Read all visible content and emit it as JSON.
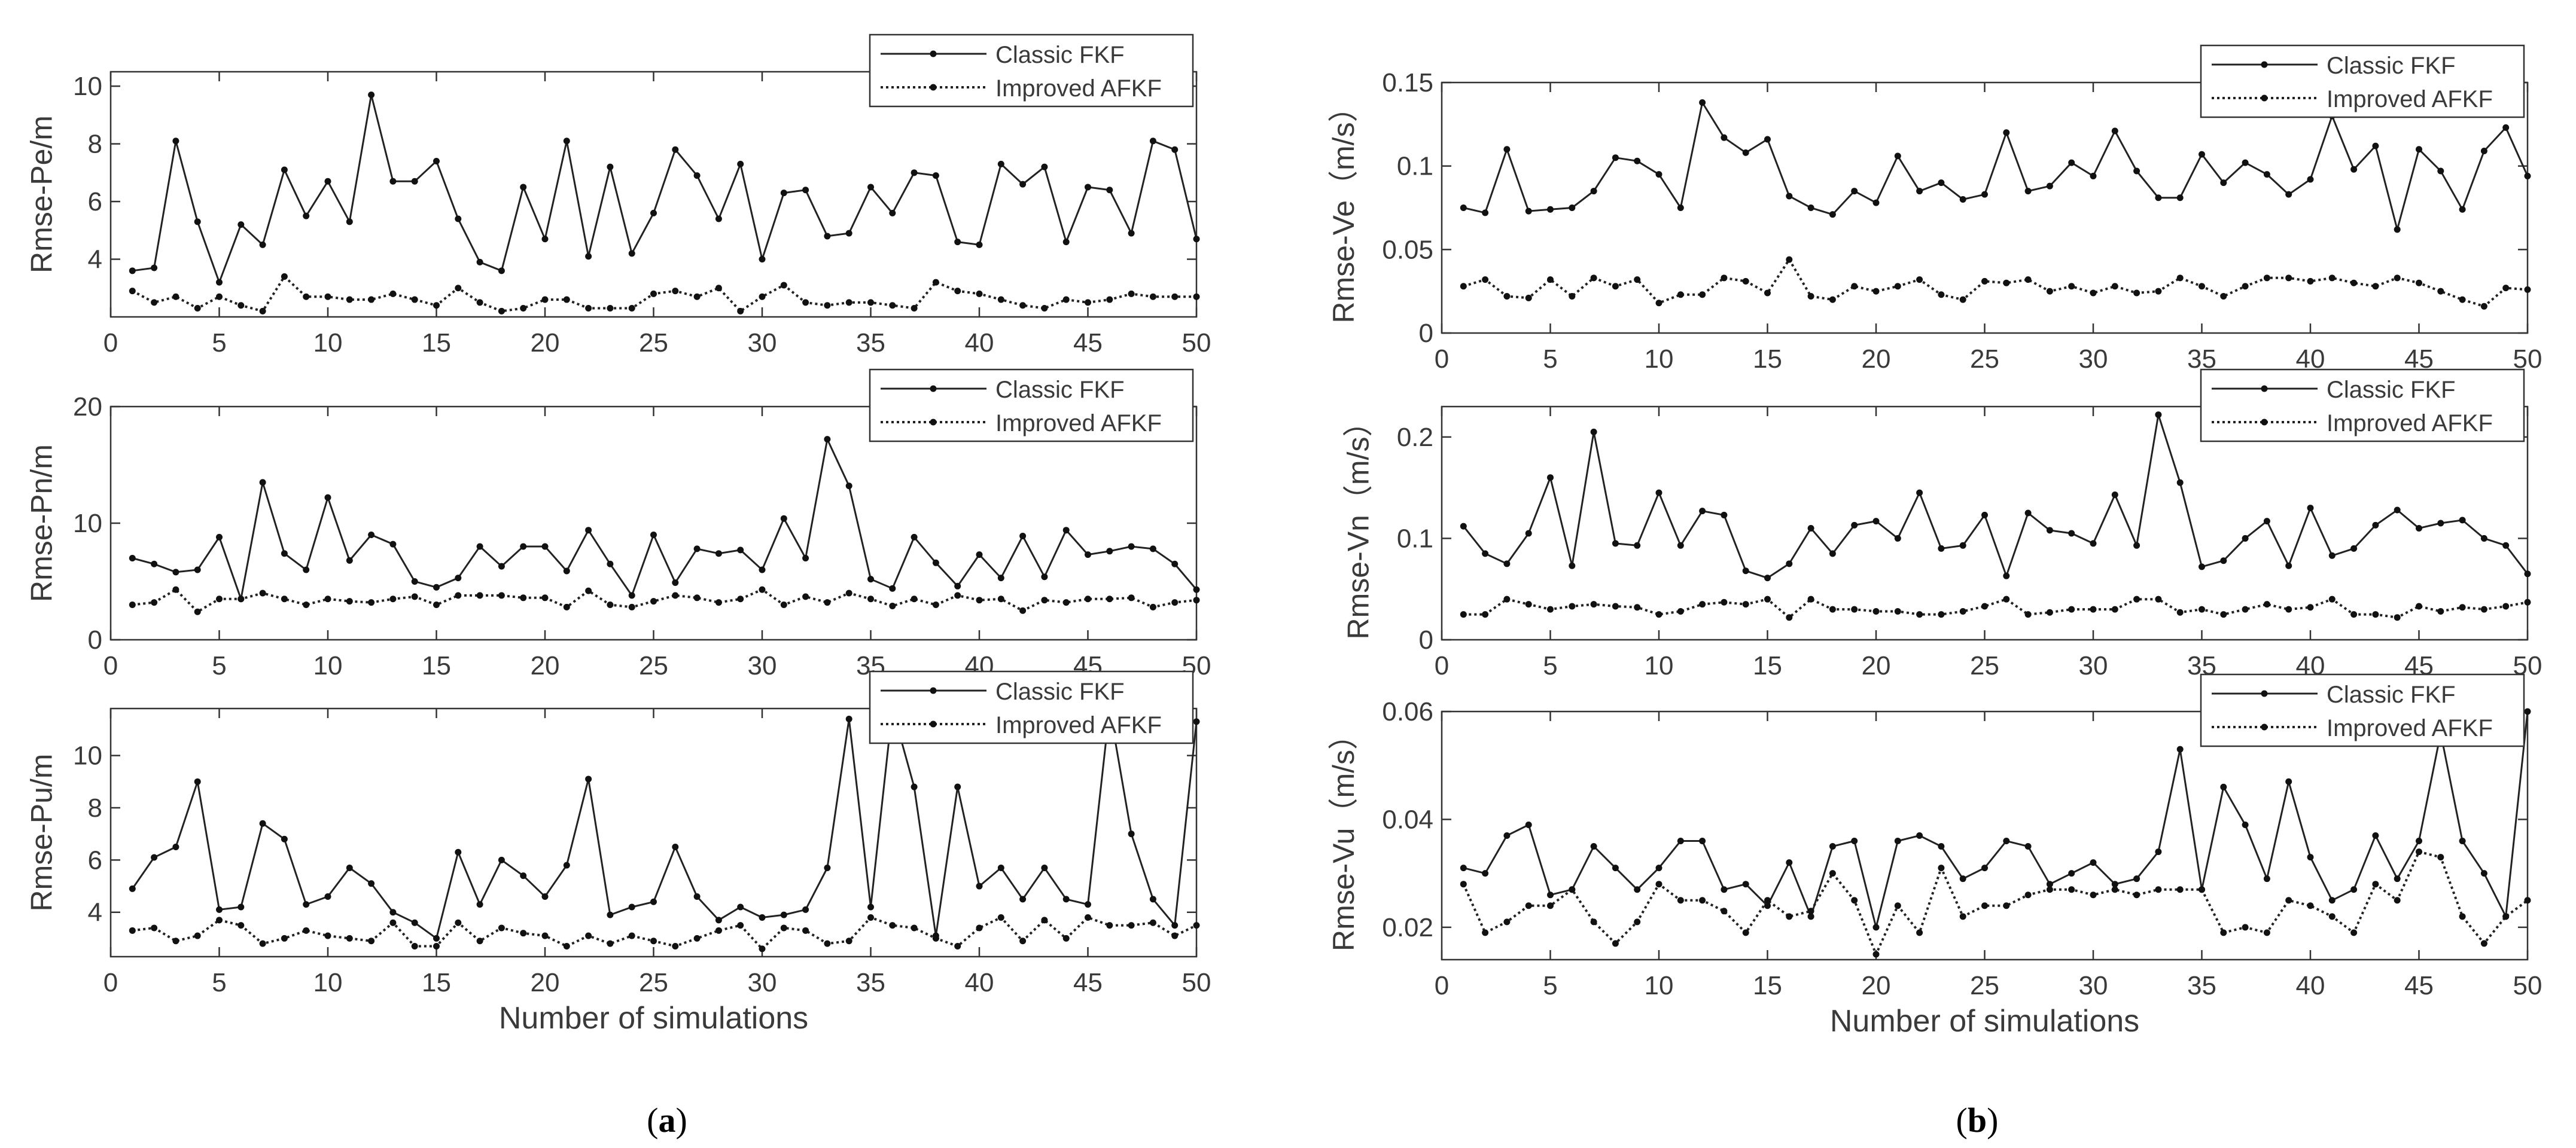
{
  "figure": {
    "caption_left_open": "(",
    "caption_left_letter": "a",
    "caption_left_close": ")",
    "caption_right_open": "(",
    "caption_right_letter": "b",
    "caption_right_close": ")"
  },
  "chart_data": [
    {
      "id": "pe",
      "type": "line",
      "ylabel": "Rmse-Pe/m",
      "xlabel": "",
      "xlim": [
        0,
        50
      ],
      "ylim": [
        2,
        10.5
      ],
      "yticks": [
        4,
        6,
        8,
        10
      ],
      "xticks": [
        0,
        5,
        10,
        15,
        20,
        25,
        30,
        35,
        40,
        45,
        50
      ],
      "x": [
        1,
        2,
        3,
        4,
        5,
        6,
        7,
        8,
        9,
        10,
        11,
        12,
        13,
        14,
        15,
        16,
        17,
        18,
        19,
        20,
        21,
        22,
        23,
        24,
        25,
        26,
        27,
        28,
        29,
        30,
        31,
        32,
        33,
        34,
        35,
        36,
        37,
        38,
        39,
        40,
        41,
        42,
        43,
        44,
        45,
        46,
        47,
        48,
        49,
        50
      ],
      "series": [
        {
          "name": "Classic FKF",
          "style": "solid",
          "values": [
            3.6,
            3.7,
            8.1,
            5.3,
            3.2,
            5.2,
            4.5,
            7.1,
            5.5,
            6.7,
            5.3,
            9.7,
            6.7,
            6.7,
            7.4,
            5.4,
            3.9,
            3.6,
            6.5,
            4.7,
            8.1,
            4.1,
            7.2,
            4.2,
            5.6,
            7.8,
            6.9,
            5.4,
            7.3,
            4.0,
            6.3,
            6.4,
            4.8,
            4.9,
            6.5,
            5.6,
            7.0,
            6.9,
            4.6,
            4.5,
            7.3,
            6.6,
            7.2,
            4.6,
            6.5,
            6.4,
            4.9,
            8.1,
            7.8,
            4.7
          ]
        },
        {
          "name": "Improved AFKF",
          "style": "dotted",
          "values": [
            2.9,
            2.5,
            2.7,
            2.3,
            2.7,
            2.4,
            2.2,
            3.4,
            2.7,
            2.7,
            2.6,
            2.6,
            2.8,
            2.6,
            2.4,
            3.0,
            2.5,
            2.2,
            2.3,
            2.6,
            2.6,
            2.3,
            2.3,
            2.3,
            2.8,
            2.9,
            2.7,
            3.0,
            2.2,
            2.7,
            3.1,
            2.5,
            2.4,
            2.5,
            2.5,
            2.4,
            2.3,
            3.2,
            2.9,
            2.8,
            2.6,
            2.4,
            2.3,
            2.6,
            2.5,
            2.6,
            2.8,
            2.7,
            2.7,
            2.7
          ]
        }
      ]
    },
    {
      "id": "pn",
      "type": "line",
      "ylabel": "Rmse-Pn/m",
      "xlabel": "",
      "xlim": [
        0,
        50
      ],
      "ylim": [
        0,
        20
      ],
      "yticks": [
        0,
        10,
        20
      ],
      "xticks": [
        0,
        5,
        10,
        15,
        20,
        25,
        30,
        35,
        40,
        45,
        50
      ],
      "x": [
        1,
        2,
        3,
        4,
        5,
        6,
        7,
        8,
        9,
        10,
        11,
        12,
        13,
        14,
        15,
        16,
        17,
        18,
        19,
        20,
        21,
        22,
        23,
        24,
        25,
        26,
        27,
        28,
        29,
        30,
        31,
        32,
        33,
        34,
        35,
        36,
        37,
        38,
        39,
        40,
        41,
        42,
        43,
        44,
        45,
        46,
        47,
        48,
        49,
        50
      ],
      "series": [
        {
          "name": "Classic FKF",
          "style": "solid",
          "values": [
            7.0,
            6.5,
            5.8,
            6.0,
            8.8,
            3.5,
            13.5,
            7.4,
            6.0,
            12.2,
            6.8,
            9.0,
            8.2,
            5.0,
            4.5,
            5.3,
            8.0,
            6.3,
            8.0,
            8.0,
            5.9,
            9.4,
            6.5,
            3.8,
            9.0,
            4.9,
            7.8,
            7.4,
            7.7,
            6.0,
            10.4,
            7.0,
            17.2,
            13.2,
            5.2,
            4.4,
            8.8,
            6.6,
            4.6,
            7.3,
            5.3,
            8.9,
            5.4,
            9.4,
            7.3,
            7.6,
            8.0,
            7.8,
            6.5,
            4.3
          ]
        },
        {
          "name": "Improved AFKF",
          "style": "dotted",
          "values": [
            3.0,
            3.2,
            4.3,
            2.4,
            3.5,
            3.5,
            4.0,
            3.5,
            3.0,
            3.5,
            3.3,
            3.2,
            3.5,
            3.7,
            3.0,
            3.8,
            3.8,
            3.8,
            3.6,
            3.6,
            2.8,
            4.2,
            3.0,
            2.8,
            3.3,
            3.8,
            3.6,
            3.2,
            3.5,
            4.3,
            3.0,
            3.7,
            3.2,
            4.0,
            3.5,
            2.9,
            3.5,
            3.0,
            3.8,
            3.4,
            3.5,
            2.5,
            3.4,
            3.2,
            3.5,
            3.5,
            3.6,
            2.8,
            3.2,
            3.4
          ]
        }
      ]
    },
    {
      "id": "pu",
      "type": "line",
      "ylabel": "Rmse-Pu/m",
      "xlabel": "Number of simulations",
      "xlim": [
        0,
        50
      ],
      "ylim": [
        2.3,
        11.8
      ],
      "yticks": [
        4,
        6,
        8,
        10
      ],
      "xticks": [
        0,
        5,
        10,
        15,
        20,
        25,
        30,
        35,
        40,
        45,
        50
      ],
      "x": [
        1,
        2,
        3,
        4,
        5,
        6,
        7,
        8,
        9,
        10,
        11,
        12,
        13,
        14,
        15,
        16,
        17,
        18,
        19,
        20,
        21,
        22,
        23,
        24,
        25,
        26,
        27,
        28,
        29,
        30,
        31,
        32,
        33,
        34,
        35,
        36,
        37,
        38,
        39,
        40,
        41,
        42,
        43,
        44,
        45,
        46,
        47,
        48,
        49,
        50
      ],
      "series": [
        {
          "name": "Classic FKF",
          "style": "solid",
          "values": [
            4.9,
            6.1,
            6.5,
            9.0,
            4.1,
            4.2,
            7.4,
            6.8,
            4.3,
            4.6,
            5.7,
            5.1,
            4.0,
            3.6,
            3.0,
            6.3,
            4.3,
            6.0,
            5.4,
            4.6,
            5.8,
            9.1,
            3.9,
            4.2,
            4.4,
            6.5,
            4.6,
            3.7,
            4.2,
            3.8,
            3.9,
            4.1,
            5.7,
            11.4,
            4.2,
            11.8,
            8.8,
            3.1,
            8.8,
            5.0,
            5.7,
            4.5,
            5.7,
            4.5,
            4.3,
            11.8,
            7.0,
            4.5,
            3.5,
            11.3
          ]
        },
        {
          "name": "Improved AFKF",
          "style": "dotted",
          "values": [
            3.3,
            3.4,
            2.9,
            3.1,
            3.7,
            3.5,
            2.8,
            3.0,
            3.3,
            3.1,
            3.0,
            2.9,
            3.6,
            2.7,
            2.7,
            3.6,
            2.9,
            3.4,
            3.2,
            3.1,
            2.7,
            3.1,
            2.8,
            3.1,
            2.9,
            2.7,
            3.0,
            3.3,
            3.5,
            2.6,
            3.4,
            3.3,
            2.8,
            2.9,
            3.8,
            3.5,
            3.4,
            3.0,
            2.7,
            3.4,
            3.8,
            2.9,
            3.7,
            3.0,
            3.8,
            3.5,
            3.5,
            3.6,
            3.1,
            3.5
          ]
        }
      ]
    },
    {
      "id": "ve",
      "type": "line",
      "ylabel": "Rmse-Ve（m/s）",
      "xlabel": "",
      "xlim": [
        0,
        50
      ],
      "ylim": [
        0,
        0.15
      ],
      "yticks": [
        0,
        0.05,
        0.1,
        0.15
      ],
      "xticks": [
        0,
        5,
        10,
        15,
        20,
        25,
        30,
        35,
        40,
        45,
        50
      ],
      "x": [
        1,
        2,
        3,
        4,
        5,
        6,
        7,
        8,
        9,
        10,
        11,
        12,
        13,
        14,
        15,
        16,
        17,
        18,
        19,
        20,
        21,
        22,
        23,
        24,
        25,
        26,
        27,
        28,
        29,
        30,
        31,
        32,
        33,
        34,
        35,
        36,
        37,
        38,
        39,
        40,
        41,
        42,
        43,
        44,
        45,
        46,
        47,
        48,
        49,
        50
      ],
      "series": [
        {
          "name": "Classic FKF",
          "style": "solid",
          "values": [
            0.075,
            0.072,
            0.11,
            0.073,
            0.074,
            0.075,
            0.085,
            0.105,
            0.103,
            0.095,
            0.075,
            0.138,
            0.117,
            0.108,
            0.116,
            0.082,
            0.075,
            0.071,
            0.085,
            0.078,
            0.106,
            0.085,
            0.09,
            0.08,
            0.083,
            0.12,
            0.085,
            0.088,
            0.102,
            0.094,
            0.121,
            0.097,
            0.081,
            0.081,
            0.107,
            0.09,
            0.102,
            0.095,
            0.083,
            0.092,
            0.13,
            0.098,
            0.112,
            0.062,
            0.11,
            0.097,
            0.074,
            0.109,
            0.123,
            0.094
          ]
        },
        {
          "name": "Improved AFKF",
          "style": "dotted",
          "values": [
            0.028,
            0.032,
            0.022,
            0.021,
            0.032,
            0.022,
            0.033,
            0.028,
            0.032,
            0.018,
            0.023,
            0.023,
            0.033,
            0.031,
            0.024,
            0.044,
            0.022,
            0.02,
            0.028,
            0.025,
            0.028,
            0.032,
            0.023,
            0.02,
            0.031,
            0.03,
            0.032,
            0.025,
            0.028,
            0.024,
            0.028,
            0.024,
            0.025,
            0.033,
            0.028,
            0.022,
            0.028,
            0.033,
            0.033,
            0.031,
            0.033,
            0.03,
            0.028,
            0.033,
            0.03,
            0.025,
            0.02,
            0.016,
            0.027,
            0.026
          ]
        }
      ]
    },
    {
      "id": "vn",
      "type": "line",
      "ylabel": "Rmse-Vn（m/s）",
      "xlabel": "",
      "xlim": [
        0,
        50
      ],
      "ylim": [
        0,
        0.23
      ],
      "yticks": [
        0,
        0.1,
        0.2
      ],
      "xticks": [
        0,
        5,
        10,
        15,
        20,
        25,
        30,
        35,
        40,
        45,
        50
      ],
      "x": [
        1,
        2,
        3,
        4,
        5,
        6,
        7,
        8,
        9,
        10,
        11,
        12,
        13,
        14,
        15,
        16,
        17,
        18,
        19,
        20,
        21,
        22,
        23,
        24,
        25,
        26,
        27,
        28,
        29,
        30,
        31,
        32,
        33,
        34,
        35,
        36,
        37,
        38,
        39,
        40,
        41,
        42,
        43,
        44,
        45,
        46,
        47,
        48,
        49,
        50
      ],
      "series": [
        {
          "name": "Classic FKF",
          "style": "solid",
          "values": [
            0.112,
            0.085,
            0.075,
            0.105,
            0.16,
            0.073,
            0.205,
            0.095,
            0.093,
            0.145,
            0.093,
            0.127,
            0.123,
            0.068,
            0.061,
            0.075,
            0.11,
            0.085,
            0.113,
            0.117,
            0.1,
            0.145,
            0.09,
            0.093,
            0.123,
            0.063,
            0.125,
            0.108,
            0.105,
            0.095,
            0.143,
            0.093,
            0.222,
            0.155,
            0.072,
            0.078,
            0.1,
            0.117,
            0.073,
            0.13,
            0.083,
            0.09,
            0.113,
            0.128,
            0.11,
            0.115,
            0.118,
            0.1,
            0.093,
            0.065
          ]
        },
        {
          "name": "Improved AFKF",
          "style": "dotted",
          "values": [
            0.025,
            0.025,
            0.04,
            0.035,
            0.03,
            0.033,
            0.035,
            0.033,
            0.032,
            0.025,
            0.028,
            0.035,
            0.037,
            0.035,
            0.04,
            0.022,
            0.04,
            0.03,
            0.03,
            0.028,
            0.028,
            0.025,
            0.025,
            0.028,
            0.033,
            0.04,
            0.025,
            0.027,
            0.03,
            0.03,
            0.03,
            0.04,
            0.04,
            0.027,
            0.03,
            0.025,
            0.03,
            0.035,
            0.03,
            0.032,
            0.04,
            0.025,
            0.025,
            0.022,
            0.033,
            0.028,
            0.032,
            0.03,
            0.033,
            0.037
          ]
        }
      ]
    },
    {
      "id": "vu",
      "type": "line",
      "ylabel": "Rmse-Vu（m/s）",
      "xlabel": "Number of simulations",
      "xlim": [
        0,
        50
      ],
      "ylim": [
        0.014,
        0.06
      ],
      "yticks": [
        0.02,
        0.04,
        0.06
      ],
      "xticks": [
        0,
        5,
        10,
        15,
        20,
        25,
        30,
        35,
        40,
        45,
        50
      ],
      "x": [
        1,
        2,
        3,
        4,
        5,
        6,
        7,
        8,
        9,
        10,
        11,
        12,
        13,
        14,
        15,
        16,
        17,
        18,
        19,
        20,
        21,
        22,
        23,
        24,
        25,
        26,
        27,
        28,
        29,
        30,
        31,
        32,
        33,
        34,
        35,
        36,
        37,
        38,
        39,
        40,
        41,
        42,
        43,
        44,
        45,
        46,
        47,
        48,
        49,
        50
      ],
      "series": [
        {
          "name": "Classic FKF",
          "style": "solid",
          "values": [
            0.031,
            0.03,
            0.037,
            0.039,
            0.026,
            0.027,
            0.035,
            0.031,
            0.027,
            0.031,
            0.036,
            0.036,
            0.027,
            0.028,
            0.024,
            0.032,
            0.022,
            0.035,
            0.036,
            0.02,
            0.036,
            0.037,
            0.035,
            0.029,
            0.031,
            0.036,
            0.035,
            0.028,
            0.03,
            0.032,
            0.028,
            0.029,
            0.034,
            0.053,
            0.027,
            0.046,
            0.039,
            0.029,
            0.047,
            0.033,
            0.025,
            0.027,
            0.037,
            0.029,
            0.036,
            0.056,
            0.036,
            0.03,
            0.022,
            0.06
          ]
        },
        {
          "name": "Improved AFKF",
          "style": "dotted",
          "values": [
            0.028,
            0.019,
            0.021,
            0.024,
            0.024,
            0.027,
            0.021,
            0.017,
            0.021,
            0.028,
            0.025,
            0.025,
            0.023,
            0.019,
            0.025,
            0.022,
            0.023,
            0.03,
            0.025,
            0.015,
            0.024,
            0.019,
            0.031,
            0.022,
            0.024,
            0.024,
            0.026,
            0.027,
            0.027,
            0.026,
            0.027,
            0.026,
            0.027,
            0.027,
            0.027,
            0.019,
            0.02,
            0.019,
            0.025,
            0.024,
            0.022,
            0.019,
            0.028,
            0.025,
            0.034,
            0.033,
            0.022,
            0.017,
            0.022,
            0.025
          ]
        }
      ]
    }
  ]
}
